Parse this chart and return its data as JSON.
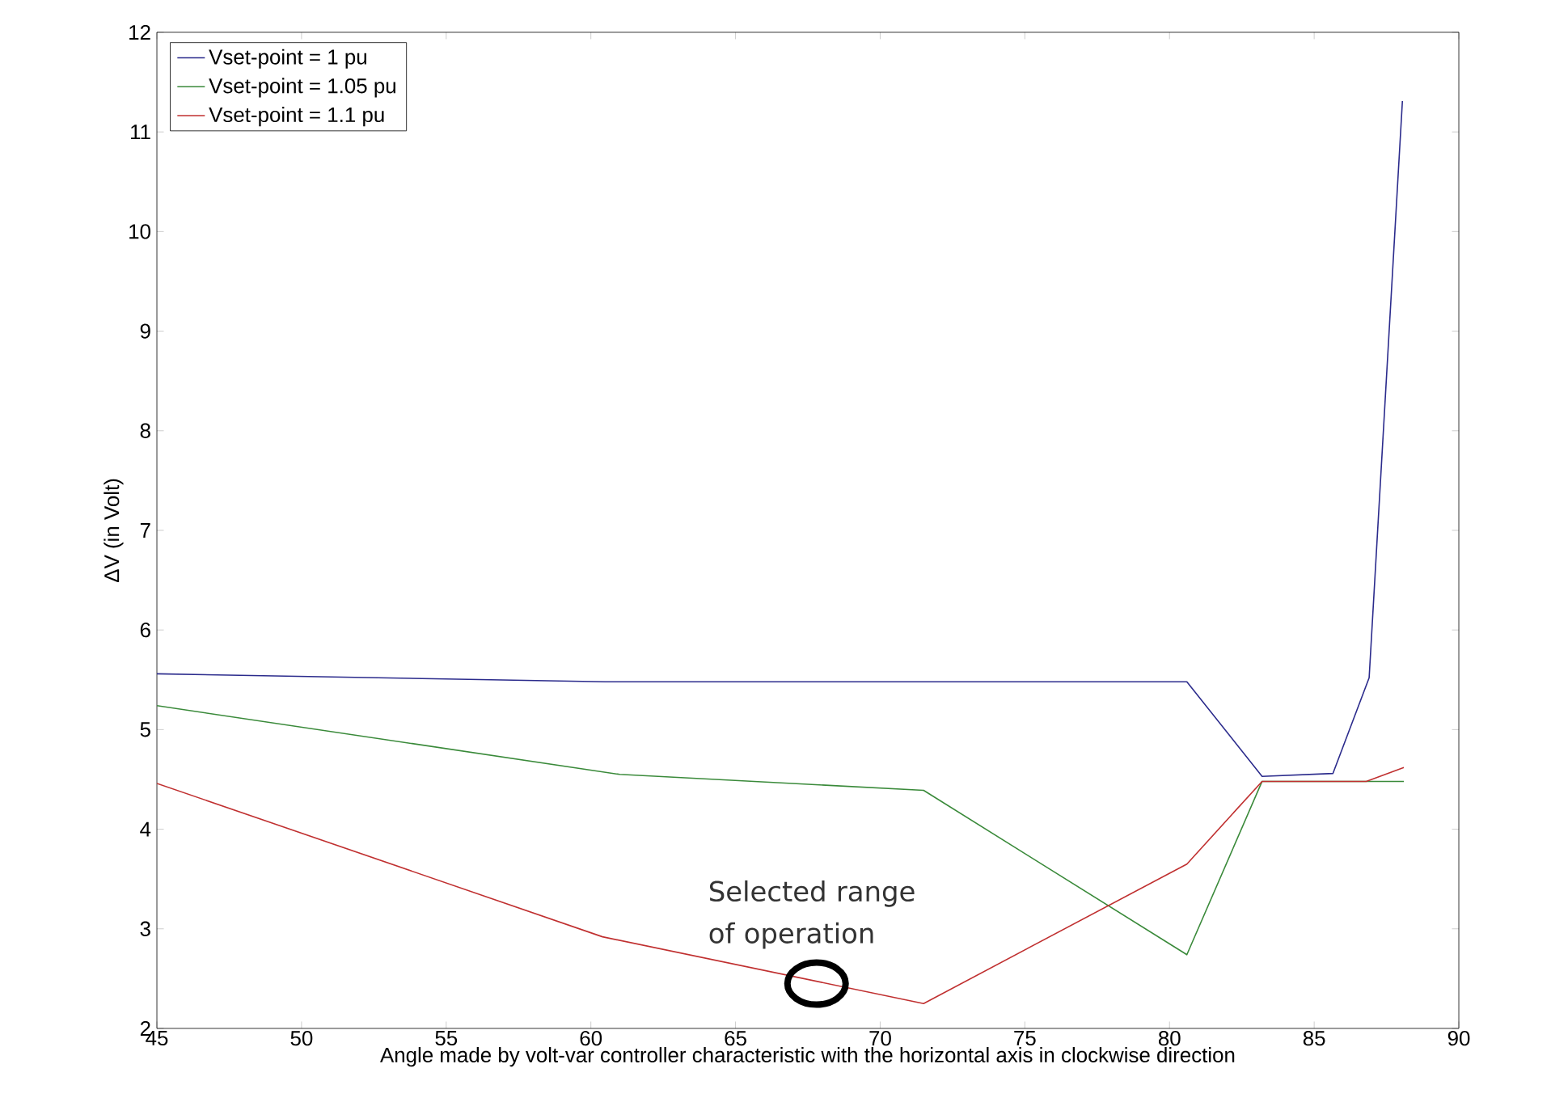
{
  "chart_data": {
    "type": "line",
    "xlabel": "Angle made by volt-var controller characteristic with the horizontal axis in clockwise direction",
    "ylabel": "ΔV (in Volt)",
    "xlim": [
      45,
      90
    ],
    "xticks": [
      45,
      50,
      55,
      60,
      65,
      70,
      75,
      80,
      85,
      90
    ],
    "ylim": [
      2,
      12
    ],
    "yticks": [
      2,
      3,
      4,
      5,
      6,
      7,
      8,
      9,
      10,
      11,
      12
    ],
    "legend": "top left",
    "marker": "none",
    "line_style": "solid",
    "series": [
      {
        "name": "Vset-point = 1 pu",
        "color": "#2b2b8c",
        "x": [
          45,
          60.5,
          80.6,
          83.2,
          85.65,
          86.9,
          88.05
        ],
        "values": [
          5.56,
          5.48,
          5.48,
          4.53,
          4.56,
          5.52,
          11.31
        ]
      },
      {
        "name": "Vset-point = 1.05 pu",
        "color": "#3a8a3a",
        "x": [
          45,
          61,
          71.5,
          80.6,
          83.2,
          88.1
        ],
        "values": [
          5.24,
          4.55,
          4.39,
          2.74,
          4.48,
          4.48
        ]
      },
      {
        "name": "Vset-point = 1.1 pu",
        "color": "#c03030",
        "x": [
          45,
          60.4,
          71.5,
          80.6,
          83.2,
          86.8,
          88.1
        ],
        "values": [
          4.46,
          2.92,
          2.25,
          3.65,
          4.48,
          4.48,
          4.62
        ]
      }
    ],
    "annotations": [
      {
        "text": "Selected range of operation",
        "x": 67.8,
        "y": 2.45
      }
    ]
  }
}
